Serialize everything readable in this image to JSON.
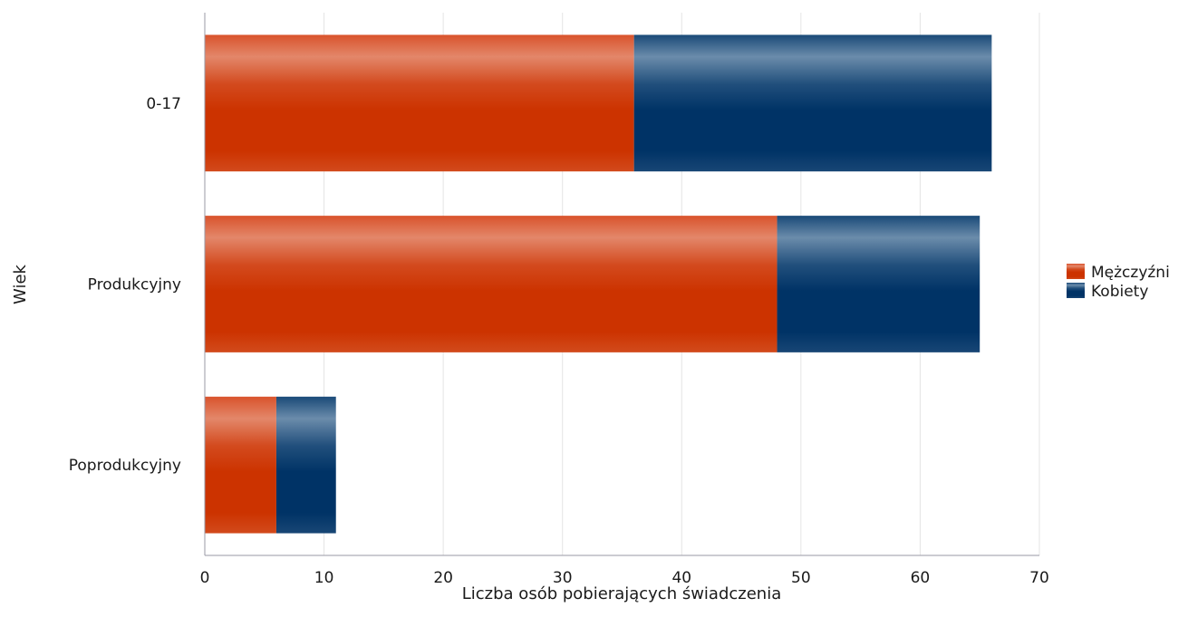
{
  "chart_data": {
    "type": "bar",
    "orientation": "horizontal",
    "stacked": true,
    "categories": [
      "0-17",
      "Produkcyjny",
      "Poprodukcyjny"
    ],
    "series": [
      {
        "name": "Mężczyźni",
        "values": [
          36,
          48,
          6
        ],
        "color": "#cc3300"
      },
      {
        "name": "Kobiety",
        "values": [
          30,
          17,
          5
        ],
        "color": "#003366"
      }
    ],
    "xlabel": "Liczba osób pobierających świadczenia",
    "ylabel": "Wiek",
    "xlim": [
      0,
      70
    ],
    "xticks": [
      0,
      10,
      20,
      30,
      40,
      50,
      60,
      70
    ],
    "grid": true,
    "legend": "right"
  }
}
